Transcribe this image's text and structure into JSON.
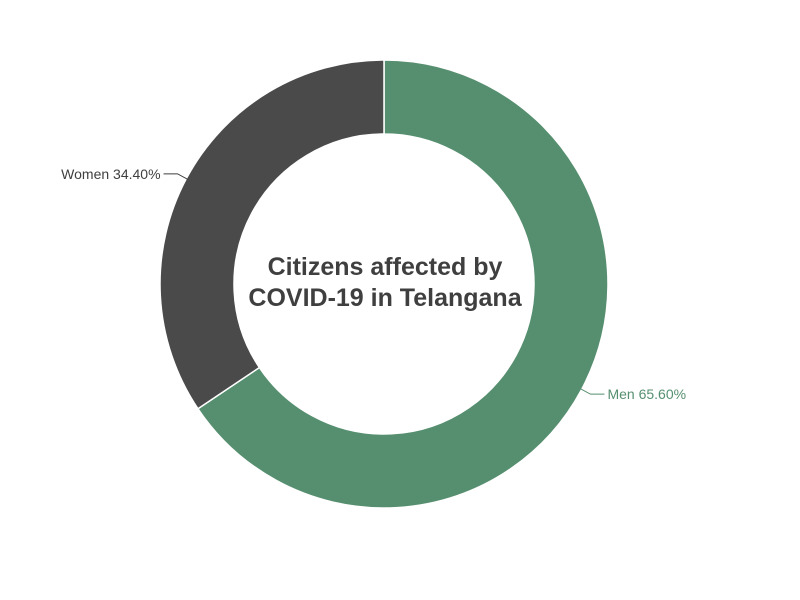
{
  "chart_data": {
    "type": "pie",
    "title": "Citizens affected by COVID-19 in Telangana",
    "slices": [
      {
        "label": "Men",
        "value": 65.6,
        "display": "Men 65.60%",
        "color": "#568f6f"
      },
      {
        "label": "Women",
        "value": 34.4,
        "display": "Women 34.40%",
        "color": "#4a4a4a"
      }
    ],
    "unit": "%",
    "start_angle_deg": 0,
    "direction": "clockwise",
    "legend": "none"
  },
  "colors": {
    "title": "#3f3f3f",
    "men_label": "#568f6f",
    "women_label": "#3f3f3f",
    "slice_border": "#ffffff"
  }
}
